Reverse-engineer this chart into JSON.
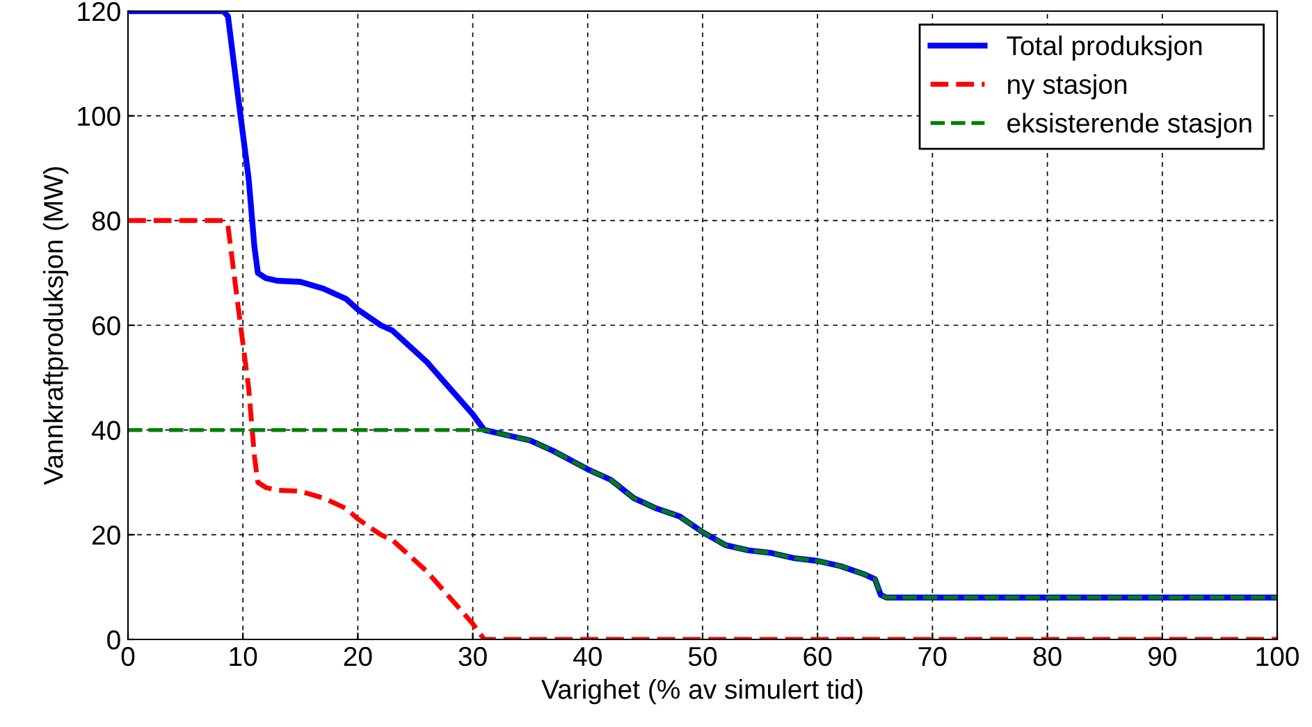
{
  "chart_data": {
    "type": "line",
    "xlabel": "Varighet (% av simulert tid)",
    "ylabel": "Vannkraftproduksjon (MW)",
    "xlim": [
      0,
      100
    ],
    "ylim": [
      0,
      120
    ],
    "xticks": [
      0,
      10,
      20,
      30,
      40,
      50,
      60,
      70,
      80,
      90,
      100
    ],
    "yticks": [
      0,
      20,
      40,
      60,
      80,
      100,
      120
    ],
    "grid": true,
    "legend": "top right",
    "series": [
      {
        "name": "Total produksjon",
        "color": "#0000ff",
        "line_style": "solid",
        "x": [
          0,
          8.3,
          8.7,
          9.5,
          10.5,
          11,
          11.3,
          12,
          13,
          15,
          17,
          19,
          20,
          22,
          23,
          25,
          26,
          28,
          30,
          31,
          33,
          35,
          37,
          40,
          42,
          44,
          46,
          48,
          50,
          52,
          54,
          56,
          58,
          60,
          62,
          64,
          65,
          65.5,
          66,
          100
        ],
        "values": [
          120,
          120,
          119,
          105,
          88,
          75,
          70,
          69,
          68.5,
          68.3,
          67,
          65,
          63,
          60,
          59,
          55,
          53,
          48,
          43,
          40,
          39,
          38,
          36,
          32.5,
          30.5,
          27,
          25,
          23.5,
          20.5,
          18,
          17,
          16.5,
          15.5,
          15,
          14,
          12.5,
          11.5,
          8.5,
          8,
          8
        ]
      },
      {
        "name": "ny stasjon",
        "color": "#ff0000",
        "line_style": "dashed",
        "x": [
          0,
          8.3,
          8.7,
          9.5,
          10.5,
          11,
          11.3,
          12,
          13,
          15,
          17,
          19,
          20,
          22,
          23,
          25,
          26,
          28,
          30,
          31,
          100
        ],
        "values": [
          80,
          80,
          79,
          65,
          48,
          35,
          30,
          29,
          28.5,
          28.3,
          27,
          25,
          23,
          20,
          19,
          15,
          13,
          8,
          3,
          0,
          0
        ]
      },
      {
        "name": "eksisterende stasjon",
        "color": "#008000",
        "line_style": "dashed",
        "x": [
          0,
          31,
          33,
          35,
          37,
          40,
          42,
          44,
          46,
          48,
          50,
          52,
          54,
          56,
          58,
          60,
          62,
          64,
          65,
          65.5,
          66,
          100
        ],
        "values": [
          40,
          40,
          39,
          38,
          36,
          32.5,
          30.5,
          27,
          25,
          23.5,
          20.5,
          18,
          17,
          16.5,
          15.5,
          15,
          14,
          12.5,
          11.5,
          8.5,
          8,
          8
        ]
      }
    ]
  }
}
